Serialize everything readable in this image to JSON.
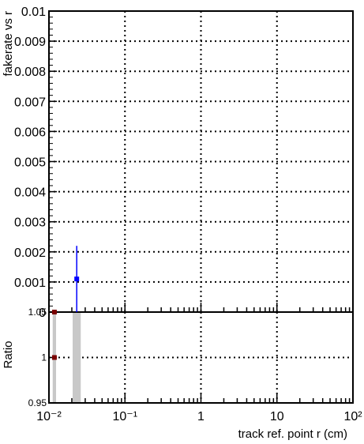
{
  "chart_data": [
    {
      "type": "scatter",
      "panel": "main",
      "title": "",
      "ylabel": "fakerate vs r",
      "xlabel": "",
      "xscale": "log",
      "xlim": [
        0.01,
        100
      ],
      "ylim": [
        0,
        0.01
      ],
      "grid": true,
      "yticks": [
        0,
        0.001,
        0.002,
        0.003,
        0.004,
        0.005,
        0.006,
        0.007,
        0.008,
        0.009,
        0.01
      ],
      "ytick_labels": [
        "0",
        "0.001",
        "0.002",
        "0.003",
        "0.004",
        "0.005",
        "0.006",
        "0.007",
        "0.008",
        "0.009",
        "0.01"
      ],
      "series": [
        {
          "color": "#0000ff",
          "points": [
            {
              "x": 0.0232,
              "y": 0.0011,
              "yerr_low": 0.0011,
              "yerr_high": 0.0011
            }
          ]
        },
        {
          "color": "#7a0000",
          "points": [
            {
              "x": 0.0118,
              "y": 0.0
            }
          ]
        }
      ]
    },
    {
      "type": "scatter",
      "panel": "ratio",
      "ylabel": "Ratio",
      "xlabel": "track ref. point r (cm)",
      "xscale": "log",
      "xlim": [
        0.01,
        100
      ],
      "ylim": [
        0.95,
        1.05
      ],
      "grid": true,
      "yticks": [
        0.95,
        1,
        1.05
      ],
      "ytick_labels": [
        "0.95",
        "1",
        "1.05"
      ],
      "xtick_labels": [
        "10⁻²",
        "10⁻¹",
        "1",
        "10",
        "10²"
      ],
      "bands": [
        {
          "x_from": 0.0112,
          "x_to": 0.0124,
          "color": "#c8c8c8"
        },
        {
          "x_from": 0.0205,
          "x_to": 0.0262,
          "color": "#c8c8c8"
        }
      ],
      "series": [
        {
          "color": "#7a0000",
          "points": [
            {
              "x": 0.0118,
              "y": 1
            }
          ]
        }
      ]
    }
  ]
}
